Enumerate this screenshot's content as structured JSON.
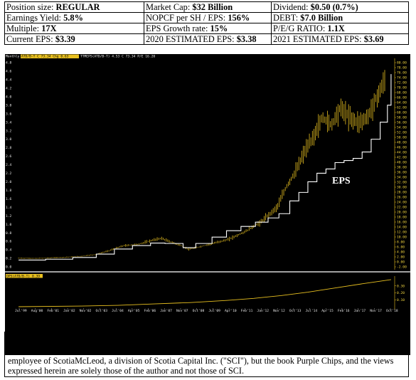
{
  "stats": {
    "row1": [
      {
        "label": "Position size: ",
        "value": "REGULAR"
      },
      {
        "label": "Market Cap: ",
        "value": "$32 Billion"
      },
      {
        "label": "Dividend: ",
        "value": "$0.50 (0.7%)"
      }
    ],
    "row2": [
      {
        "label": "Earnings Yield: ",
        "value": "5.8%"
      },
      {
        "label": "NOPCF per SH / EPS: ",
        "value": "156%"
      },
      {
        "label": "DEBT: ",
        "value": "$7.0 Billion"
      }
    ],
    "row3": [
      {
        "label": "Multiple: ",
        "value": "17X"
      },
      {
        "label": "EPS Growth rate: ",
        "value": "15%"
      },
      {
        "label": "P/E/G RATIO: ",
        "value": "1.1X"
      }
    ],
    "row4": [
      {
        "label": "Current EPS: ",
        "value": "$3.39"
      },
      {
        "label": "2020 ESTIMATED EPS: ",
        "value": "$3.38"
      },
      {
        "label": "2021 ESTIMATED EPS: ",
        "value": "$3.69"
      }
    ]
  },
  "chart_header": {
    "period": "Monthly",
    "price_legend": "ATD/B-T C 73.34 Chg 0.63",
    "eps_legend": "TTMEPS(ATD/B-T) 4.53 C 73.34 P/E 16.20",
    "dps_legend": "DPS(ATD/B-T) 0.39"
  },
  "chart_data": {
    "type": "line",
    "title": "",
    "eps_label": "EPS",
    "x_ticks": [
      "Jul'99",
      "Aug'00",
      "Feb'01",
      "Jan'02",
      "Nov'02",
      "Oct'03",
      "Jul'04",
      "Apr'05",
      "Feb'06",
      "Jan'07",
      "Nov'07",
      "Oct'08",
      "Jul'09",
      "Apr'10",
      "Feb'11",
      "Jan'12",
      "Nov'12",
      "Oct'13",
      "Jul'14",
      "Apr'15",
      "Feb'16",
      "Jan'17",
      "Nov'17",
      "Oct'18"
    ],
    "left_axis": {
      "ylim": [
        0,
        4.8
      ],
      "ticks": [
        "4.8",
        "4.6",
        "4.4",
        "4.2",
        "4.0",
        "3.8",
        "3.6",
        "3.4",
        "3.2",
        "3.0",
        "2.8",
        "2.6",
        "2.4",
        "2.2",
        "2.0",
        "1.8",
        "1.6",
        "1.4",
        "1.2",
        "1.0",
        "0.8",
        "0.6",
        "0.4",
        "0.2",
        "0.0"
      ]
    },
    "right_axis": {
      "ylim": [
        -2,
        80
      ],
      "ticks": [
        "80.00",
        "78.00",
        "76.00",
        "74.00",
        "72.00",
        "70.00",
        "68.00",
        "66.00",
        "64.00",
        "62.00",
        "60.00",
        "58.00",
        "56.00",
        "54.00",
        "52.00",
        "50.00",
        "48.00",
        "46.00",
        "44.00",
        "42.00",
        "40.00",
        "38.00",
        "36.00",
        "34.00",
        "32.00",
        "30.00",
        "28.00",
        "26.00",
        "24.00",
        "22.00",
        "20.00",
        "18.00",
        "16.00",
        "14.00",
        "12.00",
        "10.00",
        "8.00",
        "6.00",
        "4.00",
        "2.00",
        "0.00",
        "-2.00"
      ]
    },
    "dps_axis": {
      "ylim": [
        0,
        0.4
      ],
      "ticks": [
        "0.30",
        "0.20",
        "0.10"
      ]
    },
    "series": [
      {
        "name": "ATD/B-T",
        "color": "#e8c020",
        "kind": "ohlc-price",
        "points": [
          [
            1999.5,
            1.5
          ],
          [
            2000.5,
            1.4
          ],
          [
            2001.2,
            1.6
          ],
          [
            2002.0,
            1.8
          ],
          [
            2002.9,
            2.2
          ],
          [
            2003.8,
            3.0
          ],
          [
            2004.5,
            4.5
          ],
          [
            2005.3,
            6.5
          ],
          [
            2006.1,
            7.0
          ],
          [
            2006.8,
            8.5
          ],
          [
            2007.4,
            9.5
          ],
          [
            2007.9,
            8.0
          ],
          [
            2008.5,
            6.5
          ],
          [
            2008.9,
            5.0
          ],
          [
            2009.5,
            6.0
          ],
          [
            2010.3,
            7.5
          ],
          [
            2011.1,
            9.0
          ],
          [
            2012.0,
            12.0
          ],
          [
            2012.9,
            16.0
          ],
          [
            2013.8,
            22.0
          ],
          [
            2014.3,
            30.0
          ],
          [
            2014.8,
            36.0
          ],
          [
            2015.3,
            44.0
          ],
          [
            2015.8,
            50.0
          ],
          [
            2016.3,
            58.0
          ],
          [
            2016.8,
            55.0
          ],
          [
            2017.3,
            62.0
          ],
          [
            2017.8,
            58.0
          ],
          [
            2018.3,
            56.0
          ],
          [
            2018.8,
            58.0
          ],
          [
            2019.3,
            66.0
          ],
          [
            2019.8,
            73.34
          ]
        ]
      },
      {
        "name": "TTMEPS(ATD/B-T)",
        "color": "#ffffff",
        "kind": "step-line",
        "points": [
          [
            1999.5,
            0.16
          ],
          [
            2001.0,
            0.18
          ],
          [
            2002.5,
            0.22
          ],
          [
            2003.8,
            0.3
          ],
          [
            2004.8,
            0.42
          ],
          [
            2005.8,
            0.5
          ],
          [
            2006.8,
            0.56
          ],
          [
            2007.6,
            0.55
          ],
          [
            2008.6,
            0.45
          ],
          [
            2009.3,
            0.55
          ],
          [
            2010.2,
            0.7
          ],
          [
            2011.0,
            0.85
          ],
          [
            2011.8,
            0.95
          ],
          [
            2012.6,
            1.05
          ],
          [
            2013.3,
            1.15
          ],
          [
            2013.9,
            1.25
          ],
          [
            2014.5,
            1.55
          ],
          [
            2015.0,
            1.75
          ],
          [
            2015.5,
            2.0
          ],
          [
            2016.0,
            2.2
          ],
          [
            2016.5,
            2.3
          ],
          [
            2017.0,
            2.45
          ],
          [
            2017.5,
            2.5
          ],
          [
            2018.0,
            2.55
          ],
          [
            2018.5,
            2.7
          ],
          [
            2019.0,
            3.0
          ],
          [
            2019.5,
            3.4
          ],
          [
            2019.9,
            3.8
          ],
          [
            2020.1,
            4.53
          ]
        ]
      },
      {
        "name": "DPS(ATD/B-T)",
        "color": "#e8c020",
        "kind": "line",
        "points": [
          [
            1999.5,
            0.0
          ],
          [
            2003.0,
            0.01
          ],
          [
            2005.0,
            0.02
          ],
          [
            2007.0,
            0.04
          ],
          [
            2009.0,
            0.06
          ],
          [
            2011.0,
            0.09
          ],
          [
            2012.5,
            0.12
          ],
          [
            2014.0,
            0.16
          ],
          [
            2015.5,
            0.21
          ],
          [
            2017.0,
            0.27
          ],
          [
            2018.5,
            0.33
          ],
          [
            2020.1,
            0.39
          ]
        ]
      }
    ]
  }
}
